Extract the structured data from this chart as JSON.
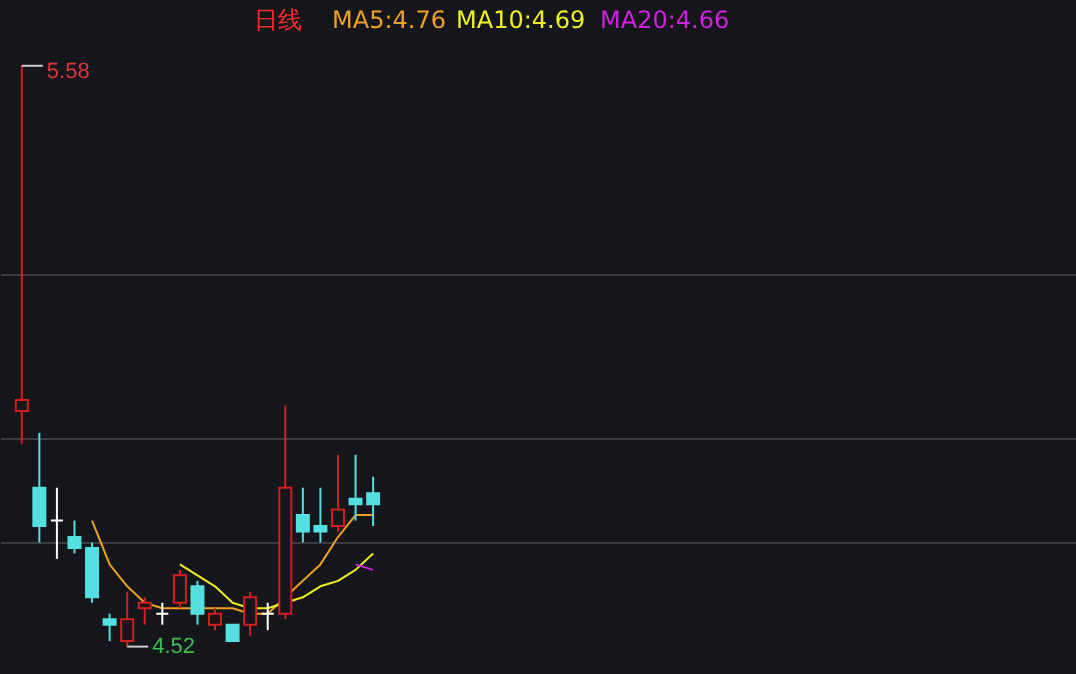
{
  "chart_data": {
    "type": "candlestick",
    "title": "日线",
    "categories": [
      null,
      null,
      null,
      null,
      null,
      null,
      null,
      null,
      null,
      null,
      null,
      null,
      null,
      null,
      null,
      null,
      null,
      null,
      null,
      null,
      null
    ],
    "ohlc": [
      [
        4.95,
        5.58,
        4.89,
        4.97
      ],
      [
        4.81,
        4.91,
        4.71,
        4.74
      ],
      [
        4.75,
        4.81,
        4.68,
        4.75
      ],
      [
        4.72,
        4.75,
        4.69,
        4.7
      ],
      [
        4.7,
        4.71,
        4.6,
        4.61
      ],
      [
        4.57,
        4.58,
        4.53,
        4.56
      ],
      [
        4.53,
        4.62,
        4.52,
        4.57
      ],
      [
        4.59,
        4.61,
        4.56,
        4.6
      ],
      [
        4.58,
        4.6,
        4.56,
        4.58
      ],
      [
        4.6,
        4.66,
        4.59,
        4.65
      ],
      [
        4.63,
        4.64,
        4.56,
        4.58
      ],
      [
        4.56,
        4.59,
        4.55,
        4.58
      ],
      [
        4.56,
        4.56,
        4.53,
        4.53
      ],
      [
        4.56,
        4.62,
        4.54,
        4.61
      ],
      [
        4.58,
        4.6,
        4.55,
        4.58
      ],
      [
        4.58,
        4.96,
        4.57,
        4.81
      ],
      [
        4.76,
        4.81,
        4.71,
        4.73
      ],
      [
        4.74,
        4.81,
        4.71,
        4.73
      ],
      [
        4.74,
        4.87,
        4.73,
        4.77
      ],
      [
        4.79,
        4.87,
        4.75,
        4.78
      ],
      [
        4.8,
        4.83,
        4.74,
        4.78
      ]
    ],
    "colors": [
      "#d21e1e",
      "#54e0e0",
      "#ffffff",
      "#54e0e0",
      "#54e0e0",
      "#54e0e0",
      "#d21e1e",
      "#d21e1e",
      "#ffffff",
      "#d21e1e",
      "#54e0e0",
      "#d21e1e",
      "#54e0e0",
      "#d21e1e",
      "#ffffff",
      "#d21e1e",
      "#54e0e0",
      "#54e0e0",
      "#d21e1e",
      "#54e0e0",
      "#54e0e0"
    ],
    "series": [
      {
        "name": "MA5:4.76",
        "type": "line",
        "color": "#f0a020",
        "values": [
          null,
          null,
          null,
          null,
          4.75,
          4.67,
          4.63,
          4.6,
          4.59,
          4.59,
          4.59,
          4.59,
          4.59,
          4.58,
          4.58,
          4.61,
          4.64,
          4.67,
          4.72,
          4.76,
          4.76
        ]
      },
      {
        "name": "MA10:4.69",
        "type": "line",
        "color": "#f0f020",
        "values": [
          null,
          null,
          null,
          null,
          null,
          null,
          null,
          null,
          null,
          4.67,
          4.65,
          4.63,
          4.6,
          4.59,
          4.59,
          4.6,
          4.61,
          4.63,
          4.64,
          4.66,
          4.69
        ]
      },
      {
        "name": "MA20:4.66",
        "type": "line",
        "color": "#d020e0",
        "values": [
          null,
          null,
          null,
          null,
          null,
          null,
          null,
          null,
          null,
          null,
          null,
          null,
          null,
          null,
          null,
          null,
          null,
          null,
          null,
          4.67,
          4.66
        ]
      }
    ],
    "ylim": [
      4.47,
      5.7
    ],
    "yticks": [
      {
        "value": 4.71,
        "label": null
      },
      {
        "value": 4.9,
        "label": null
      },
      {
        "value": 5.2,
        "label": null
      }
    ],
    "grid": "y",
    "annotations": [
      "5.58",
      "4.52"
    ]
  }
}
